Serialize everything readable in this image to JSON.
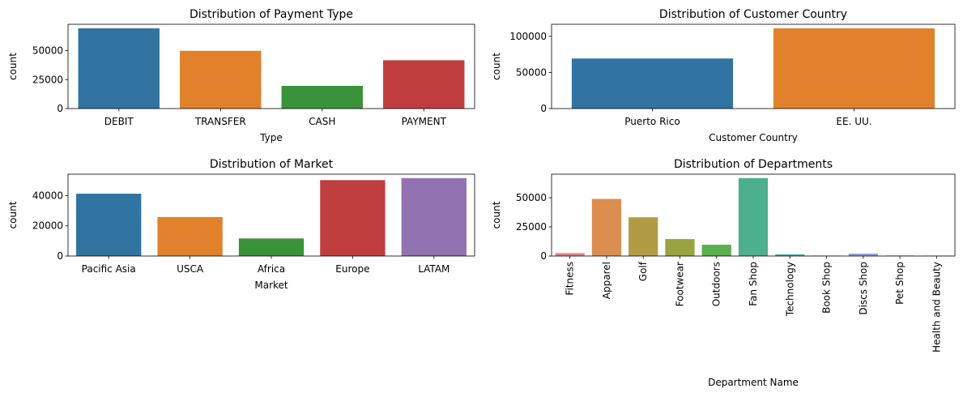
{
  "chart_data": [
    {
      "type": "bar",
      "title": "Distribution of Payment Type",
      "xlabel": "Type",
      "ylabel": "count",
      "categories": [
        "DEBIT",
        "TRANSFER",
        "CASH",
        "PAYMENT"
      ],
      "values": [
        69295,
        49883,
        19616,
        41725
      ],
      "colors": [
        "#3274a1",
        "#e1812c",
        "#3a923a",
        "#c03d3e"
      ],
      "ylim": [
        0,
        72760
      ],
      "yticks": [
        0,
        25000,
        50000
      ],
      "ytick_labels": [
        "0",
        "25000",
        "50000"
      ],
      "grid": false
    },
    {
      "type": "bar",
      "title": "Distribution of Customer Country",
      "xlabel": "Customer Country",
      "ylabel": "count",
      "categories": [
        "Puerto Rico",
        "EE. UU."
      ],
      "values": [
        69373,
        111146
      ],
      "colors": [
        "#3274a1",
        "#e1812c"
      ],
      "ylim": [
        0,
        116703
      ],
      "yticks": [
        0,
        50000,
        100000
      ],
      "ytick_labels": [
        "0",
        "50000",
        "100000"
      ],
      "grid": false
    },
    {
      "type": "bar",
      "title": "Distribution of Market",
      "xlabel": "Market",
      "ylabel": "count",
      "categories": [
        "Pacific Asia",
        "USCA",
        "Africa",
        "Europe",
        "LATAM"
      ],
      "values": [
        41260,
        25799,
        11614,
        50252,
        51594
      ],
      "colors": [
        "#3274a1",
        "#e1812c",
        "#3a923a",
        "#c03d3e",
        "#9372b2"
      ],
      "ylim": [
        0,
        54174
      ],
      "yticks": [
        0,
        20000,
        40000
      ],
      "ytick_labels": [
        "0",
        "20000",
        "40000"
      ],
      "grid": false
    },
    {
      "type": "bar",
      "title": "Distribution of Departments",
      "xlabel": "Department Name",
      "ylabel": "count",
      "categories": [
        "Fitness",
        "Apparel",
        "Golf",
        "Footwear",
        "Outdoors",
        "Fan Shop",
        "Technology",
        "Book Shop",
        "Discs Shop",
        "Pet Shop",
        "Health and Beauty"
      ],
      "values": [
        2479,
        48998,
        33220,
        14525,
        9686,
        66861,
        1465,
        405,
        2026,
        492,
        362
      ],
      "colors": [
        "#e8837b",
        "#dc8d50",
        "#b29b45",
        "#99a33f",
        "#5ab04d",
        "#4caf8e",
        "#4aabaa",
        "#53a7c6",
        "#8d9ce4",
        "#d284e8",
        "#e67ec1"
      ],
      "ylim": [
        0,
        70204
      ],
      "yticks": [
        0,
        25000,
        50000
      ],
      "ytick_labels": [
        "0",
        "25000",
        "50000"
      ],
      "grid": false,
      "xtick_rotation": 90
    }
  ]
}
